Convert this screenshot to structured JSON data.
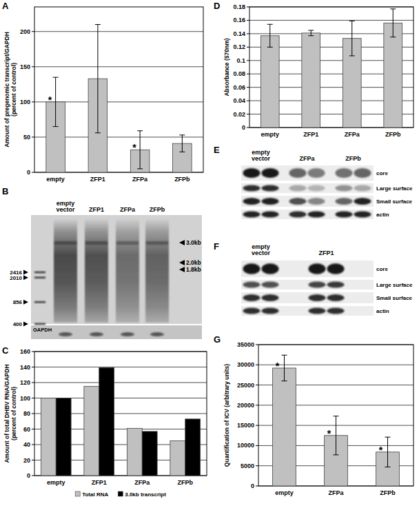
{
  "chart_data": [
    {
      "type": "bar",
      "title": "A",
      "y_label": "Amount of pregenomic transcript/GAPDH (percent of control)",
      "categories": [
        "empty",
        "ZFP1",
        "ZFPa",
        "ZFPb"
      ],
      "values": [
        100,
        133,
        32,
        41
      ],
      "errors": [
        35,
        77,
        27,
        12
      ],
      "annotations": [
        "*",
        null,
        "*",
        null
      ],
      "color": "#c0c0c0",
      "ylim": [
        0,
        235
      ],
      "yticks": [
        0,
        50,
        100,
        150,
        200
      ],
      "grid": true
    },
    {
      "type": "bar",
      "title": "C",
      "y_label": "Amount of total DHBV RNA/GAPDH (percent of control)",
      "categories": [
        "empty",
        "ZFP1",
        "ZFPa",
        "ZFPb"
      ],
      "series": [
        {
          "name": "Total RNA",
          "color": "#c0c0c0",
          "values": [
            100,
            115,
            61,
            45
          ]
        },
        {
          "name": "3.0kb transcript",
          "color": "#000000",
          "values": [
            100,
            139,
            57,
            73
          ]
        }
      ],
      "ylim": [
        0,
        160
      ],
      "yticks": [
        0,
        20,
        40,
        60,
        80,
        100,
        120,
        140,
        160
      ],
      "grid": true,
      "legend": "bottom"
    },
    {
      "type": "bar",
      "title": "D",
      "y_label": "Absorbance (570nm)",
      "categories": [
        "empty",
        "ZFP1",
        "ZFPa",
        "ZFPb"
      ],
      "values": [
        0.137,
        0.141,
        0.133,
        0.156
      ],
      "errors": [
        0.017,
        0.004,
        0.026,
        0.021
      ],
      "color": "#c0c0c0",
      "ylim": [
        0,
        0.18
      ],
      "yticks": [
        0,
        0.02,
        0.04,
        0.06,
        0.08,
        0.1,
        0.12,
        0.14,
        0.16,
        0.18
      ],
      "grid": true
    },
    {
      "type": "bar",
      "title": "G",
      "y_label": "Quantification of ICV (arbitrary units)",
      "categories": [
        "empty",
        "ZFPa",
        "ZFPb"
      ],
      "values": [
        29200,
        12500,
        8400
      ],
      "errors": [
        3200,
        4800,
        3700
      ],
      "annotations": [
        "*",
        "*",
        "*"
      ],
      "color": "#c0c0c0",
      "ylim": [
        0,
        35000
      ],
      "yticks": [
        0,
        5000,
        10000,
        15000,
        20000,
        25000,
        30000,
        35000
      ],
      "grid": true
    }
  ],
  "blots": [
    {
      "title": "B",
      "lanes": [
        "empty vector",
        "ZFP1",
        "ZFPa",
        "ZFPb"
      ],
      "ladder": [
        2416,
        2010,
        856,
        400
      ],
      "bands": [
        "3.0kb",
        "2.0kb",
        "1.8kb"
      ],
      "loading_control": "GAPDH"
    },
    {
      "title": "E",
      "lanes": [
        "empty vector",
        "ZFPa",
        "ZFPb"
      ],
      "rows": [
        "core",
        "Large surface",
        "Small surface",
        "actin"
      ]
    },
    {
      "title": "F",
      "lanes": [
        "empty vector",
        "ZFP1"
      ],
      "rows": [
        "core",
        "Large surface",
        "Small surface",
        "actin"
      ]
    }
  ]
}
